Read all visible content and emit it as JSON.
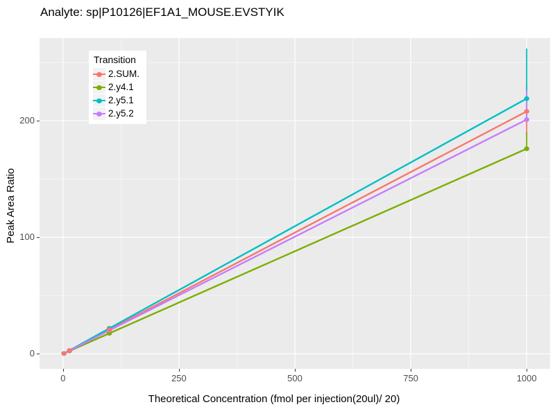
{
  "chart_data": {
    "type": "line",
    "title": "Analyte: sp|P10126|EF1A1_MOUSE.EVSTYIK",
    "xlabel": "Theoretical Concentration (fmol per injection(20ul)/ 20)",
    "ylabel": "Peak Area Ratio",
    "legend_title": "Transition",
    "legend_position": "inside-top-left",
    "grid": "on",
    "panel_background": "#EBEBEB",
    "gridline_color": "#FFFFFF",
    "tick_label_color": "#4D4D4D",
    "x_axis": {
      "ticks": [
        0,
        250,
        500,
        750,
        1000
      ],
      "minor_ticks": [
        125,
        375,
        625,
        875
      ],
      "domain": [
        -50.6,
        1050.6
      ]
    },
    "y_axis": {
      "ticks": [
        0,
        100,
        200
      ],
      "minor_ticks": [
        50,
        150,
        250
      ],
      "domain": [
        -12.9,
        270.9
      ]
    },
    "x": [
      2,
      14,
      100,
      1000
    ],
    "series": [
      {
        "name": "2.SUM.",
        "color": "#F8766D",
        "values": [
          0.3,
          2.8,
          20.8,
          208
        ],
        "errorbar": {
          "x": 1000,
          "ymin": 186,
          "ymax": 230
        }
      },
      {
        "name": "2.y4.1",
        "color": "#7CAE00",
        "values": [
          0.3,
          2.4,
          17.6,
          176
        ],
        "errorbar": {
          "x": 1000,
          "ymin": 174,
          "ymax": 190
        }
      },
      {
        "name": "2.y5.1",
        "color": "#00BFC4",
        "values": [
          0.3,
          2.9,
          21.9,
          219
        ],
        "errorbar": {
          "x": 1000,
          "ymin": 201,
          "ymax": 262
        }
      },
      {
        "name": "2.y5.2",
        "color": "#C77CFF",
        "values": [
          0.3,
          2.7,
          20.1,
          201
        ],
        "errorbar": {
          "x": 1000,
          "ymin": 201,
          "ymax": 226
        }
      }
    ]
  }
}
